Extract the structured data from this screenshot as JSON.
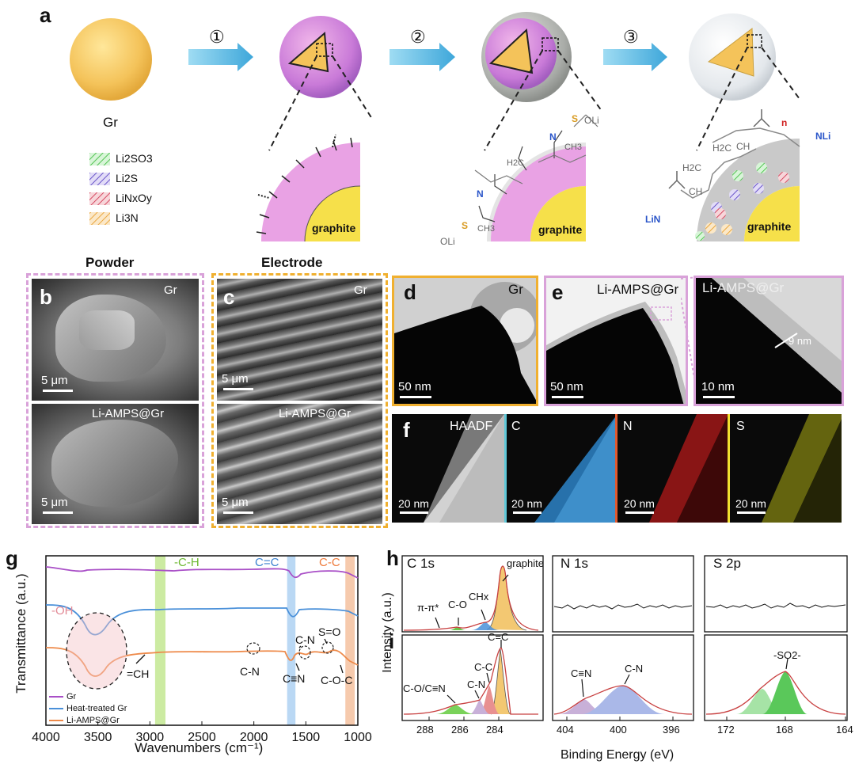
{
  "panel_a": {
    "label": "a",
    "gr_label": "Gr",
    "steps": [
      "①",
      "②",
      "③"
    ],
    "legend": [
      {
        "name": "Li2SO3",
        "color": "#9be39b"
      },
      {
        "name": "Li2S",
        "color": "#8a78d6"
      },
      {
        "name": "LiNxOy",
        "color": "#e0707a"
      },
      {
        "name": "Li3N",
        "color": "#f4c46e"
      }
    ],
    "graphite": "graphite",
    "chem_labels": {
      "oli": "OLi",
      "so3_s": "S",
      "o": "O",
      "n": "N",
      "ch3": "CH3",
      "h2c": "H2C",
      "ch": "CH",
      "n_sub": "n",
      "nli": "NLi",
      "lin": "LiN"
    }
  },
  "panel_b": {
    "label": "b",
    "title": "Powder",
    "top_tag": "Gr",
    "bottom_tag": "Li-AMPS@Gr",
    "scale": "5 μm"
  },
  "panel_c": {
    "label": "c",
    "title": "Electrode",
    "top_tag": "Gr",
    "bottom_tag": "Li-AMPS@Gr",
    "scale": "5 μm"
  },
  "panel_d": {
    "label": "d",
    "tag": "Gr",
    "scale": "50 nm"
  },
  "panel_e": {
    "label": "e",
    "tag": "Li-AMPS@Gr",
    "scale": "50 nm",
    "zoom_tag": "Li-AMPS@Gr",
    "zoom_scale": "10 nm",
    "thickness": "9 nm"
  },
  "panel_f": {
    "label": "f",
    "tiles": [
      "HAADF",
      "C",
      "N",
      "S"
    ],
    "scale": "20 nm"
  },
  "chart_data": [
    {
      "id": "g",
      "type": "line",
      "panel_label": "g",
      "xlabel": "Wavenumbers (cm⁻¹)",
      "ylabel": "Transmittance (a.u.)",
      "xlim": [
        4000,
        1000
      ],
      "xticks": [
        "4000",
        "3500",
        "3000",
        "2500",
        "2000",
        "1500",
        "1000"
      ],
      "series": [
        {
          "name": "Gr",
          "color": "#a94fc7"
        },
        {
          "name": "Heat-treated Gr",
          "color": "#4a90d9"
        },
        {
          "name": "Li-AMPS@Gr",
          "color": "#ee8a4a"
        }
      ],
      "bands": [
        {
          "label": "-C-H",
          "from": 2950,
          "to": 2850,
          "color": "#b6e37a"
        },
        {
          "label": "C=C",
          "from": 1680,
          "to": 1600,
          "color": "#9cc8ef"
        },
        {
          "label": "C-C",
          "from": 1120,
          "to": 1030,
          "color": "#f2b48a"
        }
      ],
      "annotations": [
        "-OH",
        "=CH",
        "C-N",
        "C-N",
        "C≡N",
        "S=O",
        "C-O-C"
      ]
    },
    {
      "id": "h_i",
      "type": "line",
      "panel_labels": [
        "h",
        "i"
      ],
      "xlabel": "Binding Energy (eV)",
      "ylabel": "Intensity (a.u.)",
      "subpanels": [
        {
          "title": "C 1s",
          "xlim": [
            290,
            281
          ],
          "xticks": [
            "288",
            "286",
            "284"
          ]
        },
        {
          "title": "N 1s",
          "xlim": [
            405,
            394
          ],
          "xticks": [
            "404",
            "400",
            "396"
          ]
        },
        {
          "title": "S 2p",
          "xlim": [
            174,
            164
          ],
          "xticks": [
            "172",
            "168",
            "164"
          ]
        }
      ],
      "h_annotations": [
        "π-π*",
        "C-O",
        "CHx",
        "graphite"
      ],
      "i_annotations_C": [
        "C-O/C≡N",
        "C-N",
        "C-C",
        "C=C"
      ],
      "i_annotations_N": [
        "C≡N",
        "C-N"
      ],
      "i_annotations_S": [
        "-SO2-"
      ]
    }
  ]
}
